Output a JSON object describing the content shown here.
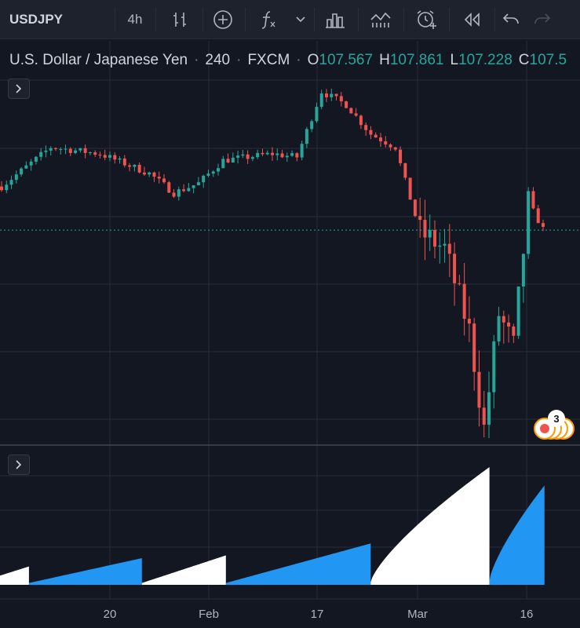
{
  "toolbar": {
    "symbol": "USDJPY",
    "interval": "4h",
    "icons": [
      "bar-style-icon",
      "compare-icon",
      "indicators-icon",
      "chevron-down-icon",
      "financials-icon",
      "templates-icon",
      "alert-icon",
      "replay-icon",
      "undo-icon",
      "redo-icon"
    ]
  },
  "legend": {
    "pair": "U.S. Dollar / Japanese Yen",
    "interval": "240",
    "source": "FXCM",
    "separator": "·",
    "open_label": "O",
    "open": "107.567",
    "high_label": "H",
    "high": "107.861",
    "low_label": "L",
    "low": "107.228",
    "close_label": "C",
    "close": "107.5"
  },
  "events": {
    "count": "3"
  },
  "time_axis": [
    {
      "label": "20",
      "x": 140
    },
    {
      "label": "Feb",
      "x": 266
    },
    {
      "label": "17",
      "x": 404
    },
    {
      "label": "Mar",
      "x": 532
    },
    {
      "label": "16",
      "x": 671
    }
  ],
  "colors": {
    "up": "#26a69a",
    "down": "#ef5350",
    "grid": "#2a2e39",
    "volume_blue": "#2196f3",
    "volume_white": "#ffffff",
    "price_line": "#26a69a"
  },
  "chart_data": {
    "type": "candlestick",
    "symbol": "USDJPY",
    "interval": "240",
    "x_ticks": [
      "20",
      "Feb",
      "17",
      "Mar",
      "16"
    ],
    "close_path": [
      [
        0,
        108.9
      ],
      [
        5,
        109.5
      ],
      [
        10,
        110.1
      ],
      [
        15,
        110.0
      ],
      [
        20,
        109.9
      ],
      [
        25,
        109.6
      ],
      [
        30,
        109.3
      ],
      [
        35,
        108.7
      ],
      [
        40,
        109.0
      ],
      [
        45,
        109.7
      ],
      [
        50,
        109.8
      ],
      [
        55,
        109.9
      ],
      [
        60,
        109.8
      ],
      [
        65,
        111.8
      ],
      [
        70,
        111.4
      ],
      [
        75,
        110.5
      ],
      [
        80,
        110.1
      ],
      [
        85,
        107.5
      ],
      [
        90,
        107.0
      ],
      [
        95,
        104.5
      ],
      [
        98,
        101.5
      ],
      [
        101,
        105.0
      ],
      [
        104,
        104.0
      ],
      [
        107,
        108.4
      ],
      [
        110,
        107.6
      ]
    ],
    "volume_segments": [
      {
        "color": "white",
        "from": 0,
        "to": 0.05,
        "start": 0.1,
        "end": 0.2
      },
      {
        "color": "blue",
        "from": 0.05,
        "to": 0.245,
        "start": 0.02,
        "end": 0.29
      },
      {
        "color": "white",
        "from": 0.245,
        "to": 0.39,
        "start": 0.02,
        "end": 0.32
      },
      {
        "color": "blue",
        "from": 0.39,
        "to": 0.64,
        "start": 0.02,
        "end": 0.45
      },
      {
        "color": "white",
        "from": 0.64,
        "to": 0.845,
        "start": 0.03,
        "end": 1.28
      },
      {
        "color": "blue",
        "from": 0.845,
        "to": 0.94,
        "start": 0.05,
        "end": 1.08
      }
    ]
  }
}
